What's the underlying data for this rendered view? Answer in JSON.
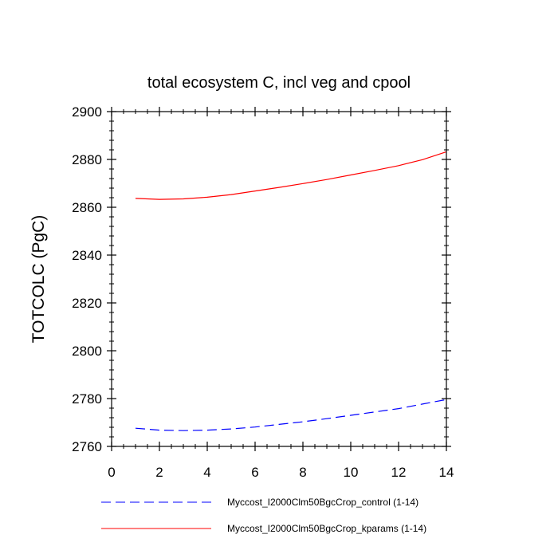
{
  "chart_data": {
    "type": "line",
    "title": "total ecosystem C, incl veg and cpool",
    "xlabel": "",
    "ylabel": "TOTCOLC  (PgC)",
    "xlim": [
      0,
      14
    ],
    "ylim": [
      2760,
      2900
    ],
    "x_ticks": [
      0,
      2,
      4,
      6,
      8,
      10,
      12,
      14
    ],
    "y_ticks": [
      2760,
      2780,
      2800,
      2820,
      2840,
      2860,
      2880,
      2900
    ],
    "x_minor_step": 0.5,
    "y_minor_step": 4,
    "x": [
      1,
      2,
      3,
      4,
      5,
      6,
      7,
      8,
      9,
      10,
      11,
      12,
      13,
      14
    ],
    "series": [
      {
        "name": "Myccost_I2000Clm50BgcCrop_control (1-14)",
        "color": "#0000ff",
        "style": "dashed",
        "values": [
          2767.6,
          2766.8,
          2766.6,
          2766.8,
          2767.3,
          2768.1,
          2769.2,
          2770.3,
          2771.6,
          2773.0,
          2774.4,
          2775.8,
          2777.7,
          2779.6
        ]
      },
      {
        "name": "Myccost_I2000Clm50BgcCrop_kparams (1-14)",
        "color": "#ff0000",
        "style": "solid",
        "values": [
          2863.7,
          2863.3,
          2863.5,
          2864.2,
          2865.3,
          2866.8,
          2868.3,
          2869.9,
          2871.6,
          2873.5,
          2875.4,
          2877.4,
          2879.9,
          2883.2
        ]
      }
    ],
    "legend_position": "bottom"
  }
}
